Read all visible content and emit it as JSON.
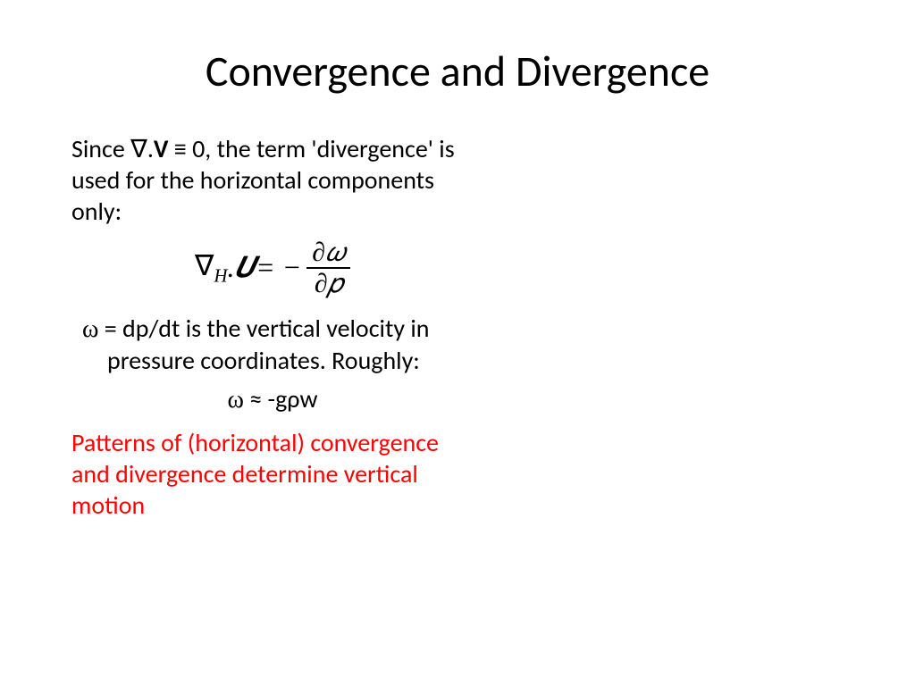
{
  "slide": {
    "title": "Convergence and Divergence",
    "para1_before": "Since ",
    "para1_nabla": "∇",
    "para1_dot": ".",
    "para1_V": "V",
    "para1_equiv": " ≡ 0, the term 'divergence' is used for the horizontal components only:",
    "equation": {
      "nabla": "∇",
      "sub_H": "H",
      "dot": ". ",
      "U": "𝑼",
      "equals": " = − ",
      "num": "∂𝜔",
      "den": "∂𝑝"
    },
    "para2_omega": "ω",
    "para2_text": "  = dp/dt is the vertical velocity in pressure coordinates. Roughly:",
    "approx_omega": "ω",
    "approx_text": "  ≈ -gρw",
    "para3": "Patterns of (horizontal) convergence and divergence determine vertical motion"
  },
  "style": {
    "background_color": "#ffffff",
    "text_color": "#000000",
    "highlight_color": "#ff0000",
    "title_fontsize": 48,
    "body_fontsize": 28,
    "math_fontsize": 32
  }
}
